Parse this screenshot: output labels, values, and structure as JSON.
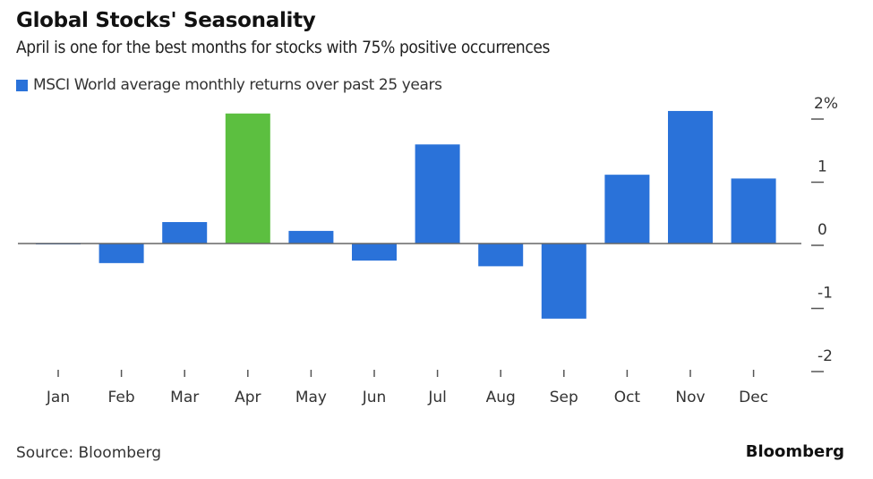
{
  "title": "Global Stocks' Seasonality",
  "subtitle": "April is one for the best months for stocks with 75% positive occurrences",
  "source": "Source: Bloomberg",
  "brand": "Bloomberg",
  "chart_data": {
    "type": "bar",
    "legend": [
      {
        "name": "MSCI World average monthly returns over past 25 years",
        "color": "#2a72d9"
      }
    ],
    "categories": [
      "Jan",
      "Feb",
      "Mar",
      "Apr",
      "May",
      "Jun",
      "Jul",
      "Aug",
      "Sep",
      "Oct",
      "Nov",
      "Dec"
    ],
    "values": [
      -0.01,
      -0.31,
      0.34,
      2.06,
      0.2,
      -0.27,
      1.57,
      -0.36,
      -1.19,
      1.09,
      2.1,
      1.03
    ],
    "highlight": {
      "category": "Apr",
      "color": "#5cbf40"
    },
    "bar_color": "#2a72d9",
    "ylim": [
      -2,
      2
    ],
    "yticks": [
      {
        "v": 2,
        "label": "2%"
      },
      {
        "v": 1,
        "label": "1"
      },
      {
        "v": 0,
        "label": "0"
      },
      {
        "v": -1,
        "label": "-1"
      },
      {
        "v": -2,
        "label": "-2"
      }
    ],
    "yaxis_position": "right",
    "grid": false
  }
}
